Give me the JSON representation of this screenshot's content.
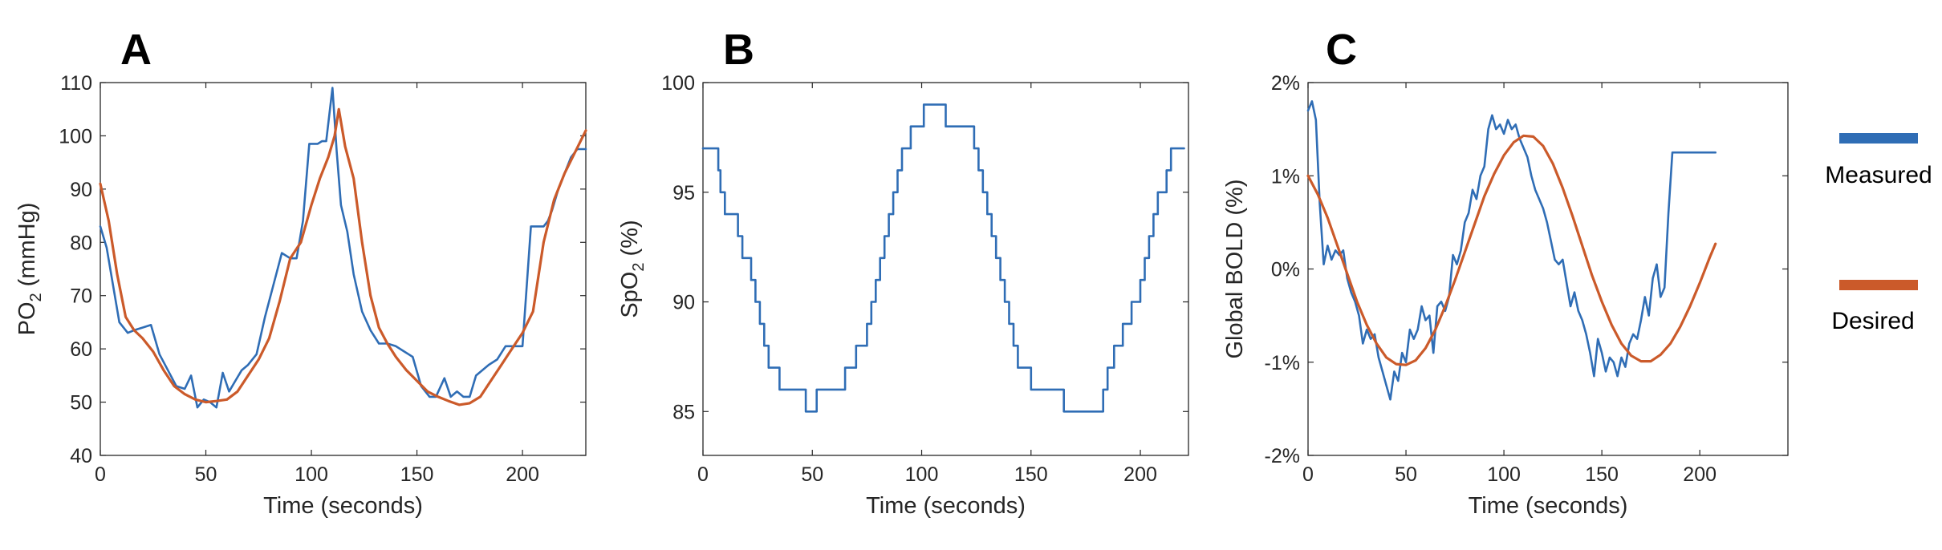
{
  "colors": {
    "measured": "#2f6db5",
    "desired": "#cb5a2a",
    "axis": "#262626"
  },
  "legend": [
    {
      "label": "Measured",
      "color": "#2f6db5"
    },
    {
      "label": "Desired",
      "color": "#cb5a2a"
    }
  ],
  "chart_data": [
    {
      "panel": "A",
      "type": "line",
      "xlabel": "Time (seconds)",
      "ylabel_main": "PO",
      "ylabel_sub": "2",
      "ylabel_suffix": " (mmHg)",
      "xlim": [
        0,
        230
      ],
      "ylim": [
        40,
        110
      ],
      "xticks": [
        0,
        50,
        100,
        150,
        200
      ],
      "yticks": [
        40,
        50,
        60,
        70,
        80,
        90,
        100,
        110
      ],
      "ytick_labels": [
        "40",
        "50",
        "60",
        "70",
        "80",
        "90",
        "100",
        "110"
      ],
      "series": [
        {
          "name": "Measured",
          "color": "#2f6db5",
          "x": [
            0,
            3,
            6,
            9,
            13,
            16,
            20,
            24,
            28,
            32,
            36,
            40,
            43,
            46,
            49,
            52,
            55,
            58,
            61,
            64,
            67,
            70,
            74,
            78,
            82,
            86,
            90,
            93,
            96,
            99,
            101,
            103,
            105,
            107,
            110,
            112,
            114,
            117,
            120,
            124,
            128,
            132,
            136,
            140,
            144,
            148,
            152,
            156,
            159,
            163,
            166,
            169,
            172,
            175,
            178,
            181,
            184,
            188,
            192,
            196,
            200,
            204,
            208,
            210,
            212,
            214,
            217,
            220,
            223,
            226,
            230
          ],
          "y": [
            83,
            79,
            72,
            65,
            63,
            63.5,
            64,
            64.5,
            59,
            56,
            53,
            52.5,
            55,
            49,
            50.5,
            50,
            49,
            55.5,
            52,
            54,
            56,
            57,
            59,
            66,
            72,
            78,
            77,
            77,
            84,
            98.5,
            98.5,
            98.5,
            99,
            99,
            109,
            97,
            87,
            82,
            74,
            67,
            63.5,
            61,
            61,
            60.5,
            59.5,
            58.5,
            53,
            51,
            51,
            54.5,
            51,
            52,
            51,
            51,
            55,
            56,
            57,
            58,
            60.5,
            60.5,
            60.5,
            83,
            83,
            83,
            84,
            86,
            90,
            93,
            96,
            97.5,
            97.5
          ]
        },
        {
          "name": "Desired",
          "color": "#cb5a2a",
          "x": [
            0,
            4,
            8,
            12,
            16,
            20,
            25,
            30,
            35,
            40,
            45,
            50,
            55,
            60,
            65,
            70,
            75,
            80,
            85,
            90,
            95,
            100,
            104,
            108,
            111,
            113,
            116,
            120,
            124,
            128,
            132,
            136,
            140,
            145,
            150,
            155,
            160,
            165,
            170,
            175,
            180,
            185,
            190,
            195,
            200,
            205,
            210,
            215,
            220,
            225,
            230
          ],
          "y": [
            91,
            84,
            74,
            66,
            63.5,
            62,
            59.5,
            56,
            53,
            51.5,
            50.5,
            50,
            50.2,
            50.5,
            52,
            55,
            58,
            62,
            69,
            77,
            80,
            87,
            92,
            96,
            100,
            105,
            98,
            92,
            80,
            70,
            64,
            61,
            58.5,
            56,
            54,
            52,
            51,
            50.2,
            49.5,
            49.8,
            51,
            54,
            57,
            60,
            63,
            67,
            80,
            88,
            93,
            97,
            101
          ]
        }
      ]
    },
    {
      "panel": "B",
      "type": "line",
      "xlabel": "Time (seconds)",
      "ylabel_main": "SpO",
      "ylabel_sub": "2",
      "ylabel_suffix": " (%)",
      "xlim": [
        0,
        222
      ],
      "ylim": [
        83,
        100
      ],
      "xticks": [
        0,
        50,
        100,
        150,
        200
      ],
      "yticks": [
        85,
        90,
        95,
        100
      ],
      "ytick_labels": [
        "85",
        "90",
        "95",
        "100"
      ],
      "series": [
        {
          "name": "Measured",
          "color": "#2f6db5",
          "step": true,
          "x": [
            0,
            7,
            8,
            10,
            16,
            18,
            22,
            24,
            26,
            28,
            30,
            32,
            35,
            38,
            42,
            47,
            52,
            65,
            70,
            75,
            77,
            79,
            81,
            83,
            85,
            87,
            89,
            91,
            93,
            95,
            97,
            99,
            101,
            111,
            113,
            124,
            126,
            128,
            130,
            132,
            134,
            136,
            138,
            140,
            142,
            144,
            146,
            148,
            150,
            152,
            155,
            165,
            183,
            185,
            188,
            192,
            196,
            200,
            202,
            204,
            206,
            208,
            210,
            212,
            214,
            217,
            220
          ],
          "y": [
            97,
            96,
            95,
            94,
            93,
            92,
            91,
            90,
            89,
            88,
            87,
            87,
            86,
            86,
            86,
            85,
            86,
            87,
            88,
            89,
            90,
            91,
            92,
            93,
            94,
            95,
            96,
            97,
            97,
            98,
            98,
            98,
            99,
            98,
            98,
            97,
            96,
            95,
            94,
            93,
            92,
            91,
            90,
            89,
            88,
            87,
            87,
            87,
            86,
            86,
            86,
            85,
            86,
            87,
            88,
            89,
            90,
            91,
            92,
            93,
            94,
            95,
            95,
            96,
            97,
            97,
            97
          ]
        }
      ]
    },
    {
      "panel": "C",
      "type": "line",
      "xlabel": "Time (seconds)",
      "ylabel_main": "Global BOLD  (%)",
      "ylabel_sub": "",
      "ylabel_suffix": "",
      "xlim": [
        0,
        245
      ],
      "ylim": [
        -2,
        2
      ],
      "xticks": [
        0,
        50,
        100,
        150,
        200
      ],
      "yticks": [
        -2,
        -1,
        0,
        1,
        2
      ],
      "ytick_labels": [
        "-2%",
        "-1%",
        "0%",
        "1%",
        "2%"
      ],
      "series": [
        {
          "name": "Measured",
          "color": "#2f6db5",
          "x": [
            0,
            2,
            4,
            6,
            8,
            10,
            12,
            14,
            16,
            18,
            20,
            22,
            24,
            26,
            28,
            30,
            32,
            34,
            36,
            38,
            40,
            42,
            44,
            46,
            48,
            50,
            52,
            54,
            56,
            58,
            60,
            62,
            64,
            66,
            68,
            70,
            72,
            74,
            76,
            78,
            80,
            82,
            84,
            86,
            88,
            90,
            92,
            94,
            96,
            98,
            100,
            102,
            104,
            106,
            108,
            110,
            112,
            114,
            116,
            118,
            120,
            122,
            124,
            126,
            128,
            130,
            132,
            134,
            136,
            138,
            140,
            142,
            144,
            146,
            148,
            150,
            152,
            154,
            156,
            158,
            160,
            162,
            164,
            166,
            168,
            170,
            172,
            174,
            176,
            178,
            180,
            182,
            184,
            186,
            188,
            190,
            192,
            194,
            196,
            198,
            200,
            202,
            204,
            206,
            208
          ],
          "y": [
            1.7,
            1.8,
            1.6,
            0.7,
            0.05,
            0.25,
            0.1,
            0.2,
            0.15,
            0.2,
            -0.1,
            -0.25,
            -0.35,
            -0.5,
            -0.8,
            -0.65,
            -0.75,
            -0.7,
            -0.95,
            -1.1,
            -1.25,
            -1.4,
            -1.1,
            -1.2,
            -0.9,
            -1.0,
            -0.65,
            -0.75,
            -0.65,
            -0.4,
            -0.55,
            -0.5,
            -0.9,
            -0.4,
            -0.35,
            -0.45,
            -0.3,
            0.15,
            0.05,
            0.2,
            0.5,
            0.6,
            0.85,
            0.75,
            1.0,
            1.1,
            1.5,
            1.65,
            1.5,
            1.55,
            1.45,
            1.6,
            1.5,
            1.55,
            1.4,
            1.3,
            1.2,
            1.0,
            0.85,
            0.75,
            0.65,
            0.5,
            0.3,
            0.1,
            0.05,
            0.1,
            -0.15,
            -0.4,
            -0.25,
            -0.45,
            -0.55,
            -0.7,
            -0.9,
            -1.15,
            -0.75,
            -0.9,
            -1.1,
            -0.95,
            -1.0,
            -1.15,
            -0.95,
            -1.05,
            -0.8,
            -0.7,
            -0.75,
            -0.55,
            -0.3,
            -0.5,
            -0.1,
            0.05,
            -0.3,
            -0.2,
            0.6,
            1.25,
            1.25,
            1.25,
            1.25,
            1.25,
            1.25,
            1.25,
            1.25,
            1.25,
            1.25,
            1.25,
            1.25
          ]
        },
        {
          "name": "Desired",
          "color": "#cb5a2a",
          "x": [
            0,
            5,
            10,
            15,
            20,
            25,
            30,
            35,
            40,
            45,
            50,
            55,
            60,
            65,
            70,
            75,
            80,
            85,
            90,
            95,
            100,
            105,
            110,
            115,
            120,
            125,
            130,
            135,
            140,
            145,
            150,
            155,
            160,
            165,
            170,
            175,
            180,
            185,
            190,
            195,
            200,
            205,
            208
          ],
          "y": [
            1.0,
            0.8,
            0.55,
            0.25,
            -0.05,
            -0.35,
            -0.6,
            -0.8,
            -0.95,
            -1.02,
            -1.03,
            -0.98,
            -0.85,
            -0.65,
            -0.4,
            -0.12,
            0.18,
            0.48,
            0.78,
            1.02,
            1.22,
            1.36,
            1.43,
            1.42,
            1.32,
            1.13,
            0.87,
            0.57,
            0.25,
            -0.07,
            -0.35,
            -0.6,
            -0.8,
            -0.93,
            -0.99,
            -0.99,
            -0.92,
            -0.8,
            -0.62,
            -0.4,
            -0.15,
            0.12,
            0.27
          ]
        }
      ]
    }
  ]
}
